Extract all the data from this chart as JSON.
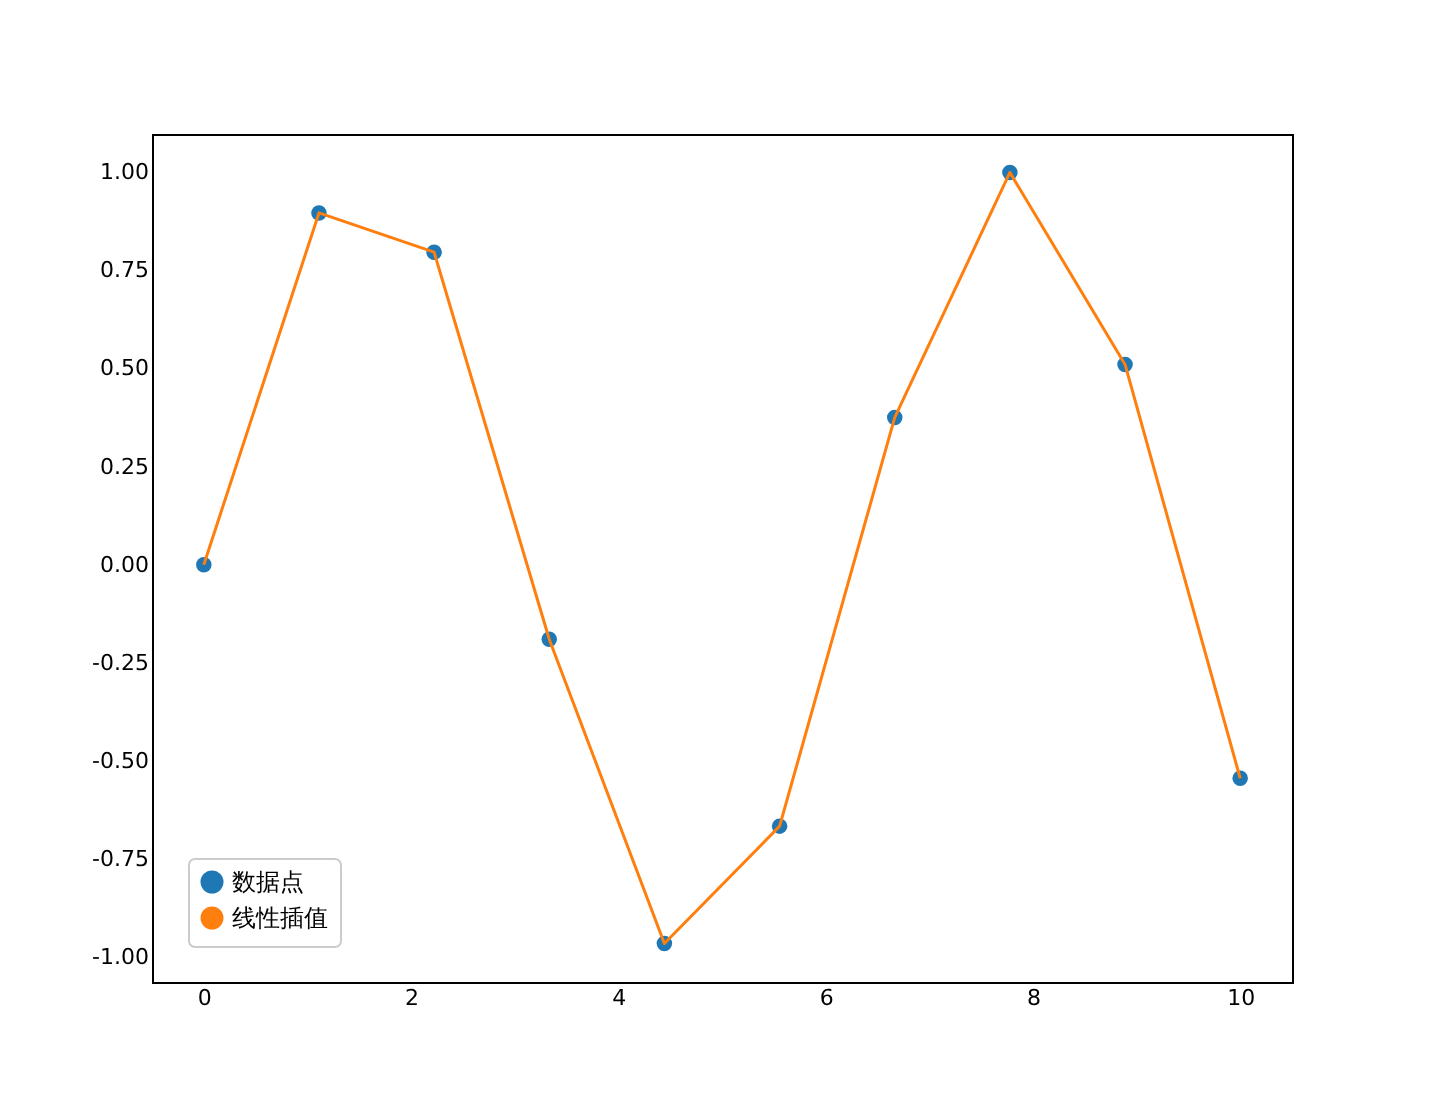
{
  "chart_data": {
    "type": "scatter",
    "xlim": [
      -0.5,
      10.5
    ],
    "xticks": [
      0,
      2,
      4,
      6,
      8,
      10
    ],
    "ylim": [
      -1.063,
      1.097
    ],
    "yticks": [
      {
        "value": -1,
        "label": "-1.00"
      },
      {
        "value": -0.75,
        "label": "-0.75"
      },
      {
        "value": -0.5,
        "label": "-0.50"
      },
      {
        "value": -0.25,
        "label": "-0.25"
      },
      {
        "value": 0,
        "label": "0.00"
      },
      {
        "value": 0.25,
        "label": "0.25"
      },
      {
        "value": 0.5,
        "label": "0.50"
      },
      {
        "value": 0.75,
        "label": "0.75"
      },
      {
        "value": 1,
        "label": "1.00"
      }
    ],
    "grid": false,
    "legend": "bottom left",
    "series": [
      {
        "name": "数据点",
        "marker": "circle",
        "color": "#1f77b4",
        "x": [
          0,
          1.111,
          2.222,
          3.333,
          4.444,
          5.556,
          6.667,
          7.778,
          8.889,
          10
        ],
        "values": [
          0,
          0.896,
          0.796,
          -0.19,
          -0.965,
          -0.666,
          0.375,
          0.999,
          0.51,
          -0.544
        ]
      },
      {
        "name": "线性插值",
        "type": "line",
        "line_style": "solid",
        "color": "#ff7f0e",
        "x": [
          0,
          1.111,
          2.222,
          3.333,
          4.444,
          5.556,
          6.667,
          7.778,
          8.889,
          10
        ],
        "values": [
          0,
          0.896,
          0.796,
          -0.19,
          -0.965,
          -0.666,
          0.375,
          0.999,
          0.51,
          -0.544
        ]
      }
    ]
  }
}
